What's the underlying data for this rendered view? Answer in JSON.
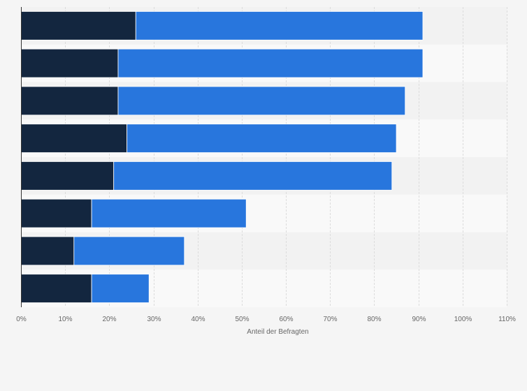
{
  "chart_data": {
    "type": "bar",
    "orientation": "horizontal",
    "stacked": true,
    "categories": [
      "",
      "",
      "",
      "",
      "",
      "",
      "",
      ""
    ],
    "series": [
      {
        "values": [
          26,
          22,
          22,
          24,
          21,
          16,
          12,
          16
        ],
        "color": "#13263f"
      },
      {
        "values": [
          65,
          69,
          65,
          61,
          63,
          35,
          25,
          13
        ],
        "color": "#2876dd"
      }
    ],
    "xlabel": "Anteil der Befragten",
    "xlim": [
      0,
      110
    ],
    "xticks": [
      "0%",
      "10%",
      "20%",
      "30%",
      "40%",
      "50%",
      "60%",
      "70%",
      "80%",
      "90%",
      "100%",
      "110%"
    ],
    "grid": true,
    "legend": "none"
  }
}
